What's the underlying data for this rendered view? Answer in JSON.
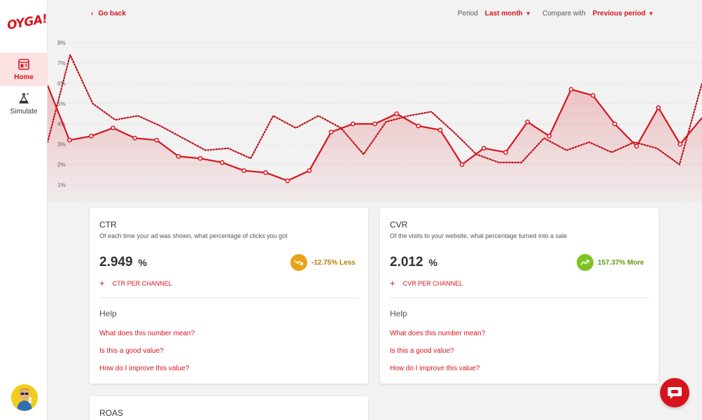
{
  "app": {
    "logo_text": "OYGA!"
  },
  "sidebar": {
    "items": [
      {
        "label": "Home",
        "icon": "home-dashboard-icon",
        "active": true
      },
      {
        "label": "Simulate",
        "icon": "flask-icon",
        "active": false
      }
    ]
  },
  "topbar": {
    "back_label": "Go back",
    "period_label": "Period",
    "period_value": "Last month",
    "compare_label": "Compare with",
    "compare_value": "Previous period"
  },
  "colors": {
    "accent": "#d7141e",
    "negative": "#e8a317",
    "positive": "#7cc41f"
  },
  "chart_data": {
    "type": "line",
    "ylim": [
      0.5,
      8.5
    ],
    "y_ticks": [
      "1%",
      "2%",
      "3%",
      "4%",
      "5%",
      "6%",
      "7%",
      "8%"
    ],
    "series": [
      {
        "style": "solid",
        "filled": true,
        "markers": true,
        "values": [
          5.9,
          3.2,
          3.4,
          3.8,
          3.3,
          3.2,
          2.4,
          2.3,
          2.1,
          1.7,
          1.6,
          1.2,
          1.7,
          3.6,
          4.0,
          4.0,
          4.5,
          3.9,
          3.7,
          2.0,
          2.8,
          2.6,
          4.1,
          3.4,
          5.7,
          5.4,
          4.0,
          2.9,
          4.8,
          3.0,
          4.3
        ]
      },
      {
        "style": "dotted",
        "filled": false,
        "markers": false,
        "values": [
          3.1,
          7.4,
          5.0,
          4.2,
          4.4,
          3.9,
          3.3,
          2.7,
          2.8,
          2.3,
          4.4,
          3.8,
          4.4,
          3.8,
          2.5,
          4.1,
          4.4,
          4.6,
          3.6,
          2.5,
          2.1,
          2.1,
          3.3,
          2.7,
          3.1,
          2.6,
          3.1,
          2.8,
          2.0,
          6.0
        ]
      }
    ]
  },
  "cards": [
    {
      "title": "CTR",
      "description": "Of each time your ad was shown, what percentage of clicks you got",
      "value": "2.949",
      "unit": "%",
      "trend_text": "-12.75% Less",
      "trend_direction": "down",
      "channel_label": "CTR PER CHANNEL",
      "help_title": "Help",
      "help_links": [
        "What does this number mean?",
        "Is this a good value?",
        "How do I improve this value?"
      ]
    },
    {
      "title": "CVR",
      "description": "Of the visits to your website, what percentage turned into a sale",
      "value": "2.012",
      "unit": "%",
      "trend_text": "157.37% More",
      "trend_direction": "up",
      "channel_label": "CVR PER CHANNEL",
      "help_title": "Help",
      "help_links": [
        "What does this number mean?",
        "Is this a good value?",
        "How do I improve this value?"
      ]
    },
    {
      "title": "ROAS"
    }
  ]
}
